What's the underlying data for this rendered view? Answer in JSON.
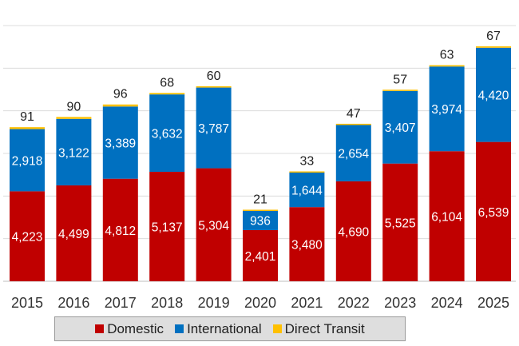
{
  "chart_data": {
    "type": "bar",
    "stacked": true,
    "categories": [
      "2015",
      "2016",
      "2017",
      "2018",
      "2019",
      "2020",
      "2021",
      "2022",
      "2023",
      "2024",
      "2025"
    ],
    "series": [
      {
        "name": "Domestic",
        "color": "#c00000",
        "values": [
          4223,
          4499,
          4812,
          5137,
          5304,
          2401,
          3480,
          4690,
          5525,
          6104,
          6539
        ],
        "labels": [
          "4,223",
          "4,499",
          "4,812",
          "5,137",
          "5,304",
          "2,401",
          "3,480",
          "4,690",
          "5,525",
          "6,104",
          "6,539"
        ]
      },
      {
        "name": "International",
        "color": "#0070c0",
        "values": [
          2918,
          3122,
          3389,
          3632,
          3787,
          936,
          1644,
          2654,
          3407,
          3974,
          4420
        ],
        "labels": [
          "2,918",
          "3,122",
          "3,389",
          "3,632",
          "3,787",
          "936",
          "1,644",
          "2,654",
          "3,407",
          "3,974",
          "4,420"
        ]
      },
      {
        "name": "Direct Transit",
        "color": "#ffc000",
        "values": [
          91,
          90,
          96,
          68,
          60,
          21,
          33,
          47,
          57,
          63,
          67
        ],
        "labels": [
          "91",
          "90",
          "96",
          "68",
          "60",
          "21",
          "33",
          "47",
          "57",
          "63",
          "67"
        ]
      }
    ],
    "ylim": [
      0,
      12000
    ],
    "grid": true,
    "legend_position": "bottom"
  }
}
